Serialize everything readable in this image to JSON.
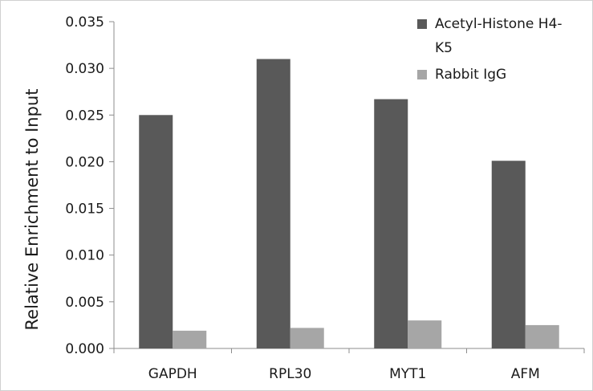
{
  "chart_data": {
    "type": "bar",
    "categories": [
      "GAPDH",
      "RPL30",
      "MYT1",
      "AFM"
    ],
    "series": [
      {
        "name": "Acetyl-Histone H4-K5",
        "values": [
          0.025,
          0.031,
          0.0267,
          0.0201
        ],
        "color": "#595959"
      },
      {
        "name": "Rabbit IgG",
        "values": [
          0.0019,
          0.0022,
          0.003,
          0.0025
        ],
        "color": "#a6a6a6"
      }
    ],
    "title": "",
    "xlabel": "",
    "ylabel": "Relative Enrichment to Input",
    "ylim": [
      0,
      0.035
    ],
    "yticks": [
      "0.000",
      "0.005",
      "0.010",
      "0.015",
      "0.020",
      "0.025",
      "0.030",
      "0.035"
    ],
    "legend": {
      "position": "top-right",
      "lines": [
        [
          "Acetyl-Histone H4-",
          "K5"
        ],
        [
          "Rabbit IgG"
        ]
      ]
    },
    "grid": false
  }
}
